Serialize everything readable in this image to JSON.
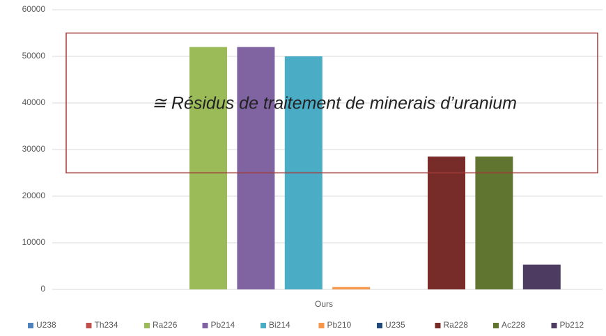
{
  "chart_data": {
    "type": "bar",
    "categories": [
      "Ours"
    ],
    "series": [
      {
        "name": "U238",
        "color": "#4f81bd",
        "values": [
          0
        ]
      },
      {
        "name": "Th234",
        "color": "#c0504d",
        "values": [
          0
        ]
      },
      {
        "name": "Ra226",
        "color": "#9bbb59",
        "values": [
          52000
        ]
      },
      {
        "name": "Pb214",
        "color": "#8064a2",
        "values": [
          52000
        ]
      },
      {
        "name": "Bi214",
        "color": "#4bacc6",
        "values": [
          50000
        ]
      },
      {
        "name": "Pb210",
        "color": "#f79646",
        "values": [
          500
        ]
      },
      {
        "name": "U235",
        "color": "#1f497d",
        "values": [
          0
        ]
      },
      {
        "name": "Ra228",
        "color": "#772c2a",
        "values": [
          28500
        ]
      },
      {
        "name": "Ac228",
        "color": "#5f7530",
        "values": [
          28500
        ]
      },
      {
        "name": "Pb212",
        "color": "#4d3b62",
        "values": [
          5300
        ]
      }
    ],
    "ylim": [
      0,
      60000
    ],
    "yticks": [
      0,
      10000,
      20000,
      30000,
      40000,
      50000,
      60000
    ],
    "grid": true,
    "legend": "bottom",
    "annotation": {
      "text": "≅ Résidus de traitement de minerais d’uranium",
      "ylim": [
        25000,
        55000
      ],
      "color": "#a33b3b"
    }
  }
}
